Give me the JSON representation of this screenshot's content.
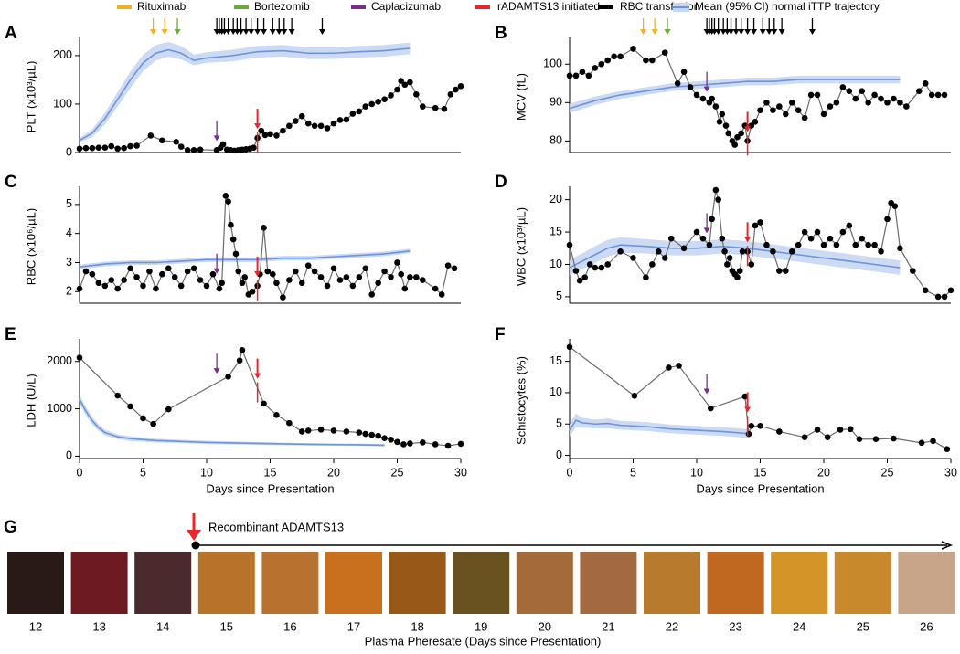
{
  "legend": [
    {
      "name": "Rituximab",
      "color": "#f2b01e",
      "days": [
        5.8,
        6.7
      ]
    },
    {
      "name": "Bortezomib",
      "color": "#6aab3a",
      "days": [
        7.7
      ]
    },
    {
      "name": "Caplacizumab",
      "color": "#7b2d8e",
      "days": [
        10.8
      ]
    },
    {
      "name": "rADAMTS13 initiated",
      "color": "#e8262a",
      "days": [
        14
      ]
    },
    {
      "name": "RBC transfusion",
      "color": "#000000",
      "days": [
        10.8,
        11,
        11.2,
        11.4,
        11.7,
        12.1,
        12.4,
        12.7,
        13.1,
        13.5,
        14,
        14.5,
        15.2,
        15.7,
        16.1,
        16.7,
        19.1
      ]
    },
    {
      "name": "Mean (95% CI) normal iTTP trajectory",
      "color": "#6e94dc",
      "band_color": "#c7d6f2"
    }
  ],
  "chart_data": [
    {
      "type": "line",
      "panel": "A",
      "ylabel": "PLT (x10³/µL)",
      "xlim": [
        0,
        30
      ],
      "ylim": [
        0,
        230
      ],
      "yticks": [
        0,
        100,
        200
      ],
      "event_strip": true,
      "patient": {
        "x": [
          0,
          0.5,
          1,
          1.5,
          2,
          2.5,
          3,
          3.5,
          4,
          4.5,
          5.6,
          6.5,
          7.6,
          8,
          8.5,
          9,
          9.5,
          10.8,
          11.1,
          11.3,
          11.6,
          11.9,
          12.2,
          12.5,
          12.8,
          13.1,
          13.4,
          13.7,
          14,
          14.3,
          14.6,
          15,
          15.5,
          16,
          16.5,
          17,
          17.5,
          18,
          18.5,
          19,
          19.5,
          20,
          20.5,
          21,
          21.5,
          22,
          22.5,
          23,
          23.5,
          24,
          24.5,
          25,
          25.3,
          25.6,
          26,
          26.5,
          27,
          28,
          28.7,
          29.2,
          29.6,
          30
        ],
        "values": [
          8,
          9,
          9,
          10,
          10,
          13,
          8,
          9,
          13,
          14,
          35,
          25,
          22,
          12,
          5,
          5,
          6,
          5,
          10,
          17,
          6,
          5,
          4,
          5,
          6,
          7,
          8,
          10,
          30,
          45,
          36,
          38,
          35,
          45,
          55,
          65,
          75,
          60,
          55,
          55,
          50,
          60,
          67,
          68,
          80,
          85,
          95,
          100,
          105,
          110,
          118,
          130,
          148,
          140,
          145,
          120,
          95,
          92,
          90,
          120,
          130,
          137
        ]
      },
      "mean": {
        "x": [
          0,
          1,
          2,
          3,
          4,
          5,
          6,
          7,
          8,
          9,
          10,
          12,
          14,
          16,
          18,
          20,
          22,
          24,
          26
        ],
        "values": [
          25,
          40,
          70,
          110,
          150,
          185,
          205,
          212,
          205,
          190,
          195,
          200,
          208,
          210,
          205,
          205,
          208,
          210,
          215
        ],
        "lower": [
          20,
          32,
          58,
          95,
          133,
          168,
          190,
          198,
          192,
          180,
          185,
          188,
          196,
          198,
          193,
          193,
          196,
          198,
          203
        ],
        "upper": [
          30,
          48,
          82,
          125,
          167,
          202,
          222,
          228,
          220,
          202,
          207,
          212,
          220,
          222,
          217,
          217,
          220,
          222,
          227
        ]
      }
    },
    {
      "type": "line",
      "panel": "B",
      "ylabel": "MCV (fL)",
      "xlim": [
        0,
        30
      ],
      "ylim": [
        77,
        106
      ],
      "yticks": [
        80,
        90,
        100
      ],
      "event_strip": true,
      "patient": {
        "x": [
          0,
          0.5,
          1,
          1.5,
          2,
          2.5,
          3,
          3.5,
          4,
          5,
          6,
          6.5,
          7.5,
          8.5,
          9,
          9.5,
          10,
          10.5,
          11,
          11.2,
          11.5,
          11.8,
          12,
          12.3,
          12.5,
          12.8,
          13,
          13.2,
          13.5,
          13.8,
          14,
          14.3,
          14.6,
          15,
          15.5,
          16,
          16.5,
          17,
          17.5,
          18,
          18.5,
          19,
          19.5,
          20,
          20.5,
          21,
          21.5,
          22,
          22.5,
          23,
          23.5,
          24,
          24.5,
          25,
          25.5,
          26,
          26.5,
          27.5,
          28,
          28.5,
          29,
          29.5
        ],
        "values": [
          97,
          97,
          98,
          97,
          99,
          100,
          101,
          102,
          102,
          104,
          101,
          101,
          103,
          95,
          98,
          94,
          92,
          91,
          90,
          91,
          89,
          85,
          87,
          84,
          82,
          80,
          79,
          81,
          82,
          84,
          80,
          84,
          85,
          88,
          90,
          88,
          89,
          87,
          90,
          88,
          86,
          92,
          92,
          87,
          89,
          90,
          94,
          93,
          91,
          93,
          90,
          92,
          91,
          90,
          91,
          90,
          89,
          93,
          95,
          92,
          92,
          92
        ]
      },
      "mean": {
        "x": [
          0,
          2,
          4,
          6,
          8,
          10,
          12,
          14,
          16,
          18,
          20,
          22,
          24,
          26
        ],
        "values": [
          88.5,
          90.5,
          92,
          93,
          94,
          94.5,
          95,
          95.5,
          95.5,
          96,
          96,
          96,
          96,
          96
        ],
        "lower": [
          87.3,
          89.4,
          91,
          92,
          93,
          93.5,
          94,
          94.5,
          94.5,
          95,
          95,
          95,
          95,
          95
        ],
        "upper": [
          89.7,
          91.6,
          93,
          94,
          95,
          95.5,
          96,
          96.5,
          96.5,
          97,
          97,
          97,
          97,
          97
        ]
      }
    },
    {
      "type": "line",
      "panel": "C",
      "ylabel": "RBC (x10⁶/µL)",
      "xlim": [
        0,
        30
      ],
      "ylim": [
        1.6,
        5.5
      ],
      "yticks": [
        2,
        3,
        4,
        5
      ],
      "patient": {
        "x": [
          0,
          0.5,
          1,
          1.5,
          2,
          2.5,
          3,
          3.5,
          4,
          4.5,
          5,
          5.5,
          6,
          6.5,
          7,
          7.5,
          8,
          8.5,
          9,
          9.5,
          10,
          10.5,
          11,
          11.2,
          11.5,
          11.7,
          11.9,
          12.1,
          12.3,
          12.5,
          12.8,
          13,
          13.3,
          13.6,
          14,
          14.2,
          14.5,
          14.8,
          15.2,
          15.5,
          16,
          16.5,
          17,
          17.5,
          18,
          18.5,
          19,
          19.5,
          20,
          20.5,
          21,
          21.5,
          22,
          22.5,
          23,
          23.5,
          24,
          24.5,
          25,
          25.3,
          25.6,
          26,
          26.5,
          27,
          28,
          28.5,
          29,
          29.5
        ],
        "values": [
          2.1,
          2.7,
          2.6,
          2.3,
          2.2,
          2.4,
          2.1,
          2.4,
          2.8,
          2.5,
          2.2,
          2.7,
          2.1,
          2.6,
          2.8,
          2.5,
          2.2,
          2.7,
          2.8,
          2.4,
          2.2,
          2.6,
          2.1,
          2.3,
          5.3,
          5.1,
          4.3,
          3.8,
          3.3,
          2.7,
          2.3,
          2.5,
          1.9,
          2.0,
          2.2,
          2.6,
          4.2,
          2.7,
          2.6,
          2.3,
          1.8,
          2.4,
          2.7,
          2.3,
          2.9,
          2.7,
          2.5,
          2.2,
          2.8,
          2.4,
          2.5,
          2.2,
          2.5,
          2.8,
          1.9,
          2.3,
          2.7,
          2.5,
          3.0,
          2.6,
          2.1,
          2.5,
          2.5,
          2.4,
          2.1,
          1.9,
          2.9,
          2.8
        ]
      },
      "mean": {
        "x": [
          0,
          2,
          4,
          6,
          8,
          10,
          12,
          14,
          16,
          18,
          20,
          22,
          24,
          26
        ],
        "values": [
          2.85,
          2.95,
          3.0,
          3.0,
          3.05,
          3.1,
          3.1,
          3.1,
          3.15,
          3.15,
          3.2,
          3.25,
          3.3,
          3.4
        ],
        "lower": [
          2.77,
          2.87,
          2.92,
          2.92,
          2.97,
          3.02,
          3.02,
          3.02,
          3.07,
          3.07,
          3.12,
          3.17,
          3.22,
          3.32
        ],
        "upper": [
          2.93,
          3.03,
          3.08,
          3.08,
          3.13,
          3.18,
          3.18,
          3.18,
          3.23,
          3.23,
          3.28,
          3.33,
          3.38,
          3.48
        ]
      }
    },
    {
      "type": "line",
      "panel": "D",
      "ylabel": "WBC (x10³/µL)",
      "xlim": [
        0,
        30
      ],
      "ylim": [
        4,
        21.5
      ],
      "yticks": [
        5,
        10,
        15,
        20
      ],
      "patient": {
        "x": [
          0,
          0.5,
          0.8,
          1.2,
          1.6,
          2,
          2.5,
          3,
          4,
          5,
          6,
          6.5,
          7,
          7.5,
          8,
          9,
          10,
          10.5,
          11,
          11.2,
          11.5,
          11.7,
          12,
          12.2,
          12.4,
          12.6,
          12.8,
          13,
          13.2,
          13.4,
          13.6,
          14,
          14.3,
          14.6,
          15,
          15.5,
          16,
          16.5,
          17,
          17.5,
          18,
          18.5,
          19,
          19.5,
          20,
          20.5,
          21,
          21.5,
          22,
          22.5,
          23,
          23.5,
          24,
          24.5,
          25,
          25.3,
          25.6,
          26,
          27,
          28,
          29,
          29.5,
          30
        ],
        "values": [
          13,
          9,
          7.5,
          8,
          10,
          9.5,
          9.5,
          10,
          12,
          11,
          8,
          10,
          12,
          11,
          14,
          12.5,
          15,
          14,
          13,
          17,
          21.5,
          20,
          14,
          12,
          10,
          11,
          9,
          8.5,
          8,
          9,
          12,
          12,
          10,
          16,
          16.5,
          13,
          12,
          9,
          9,
          12,
          13,
          15,
          14,
          15,
          13,
          14,
          13,
          15,
          16,
          13,
          14,
          13,
          13,
          12,
          17,
          19.5,
          19,
          12.5,
          9,
          6,
          5,
          5,
          6
        ]
      },
      "mean": {
        "x": [
          0,
          1,
          2,
          3,
          4,
          6,
          8,
          10,
          12,
          14,
          16,
          18,
          20,
          22,
          24,
          26
        ],
        "values": [
          9.5,
          10.5,
          11.5,
          12.5,
          13,
          12.8,
          12.5,
          12.5,
          12.8,
          12.5,
          12,
          11.5,
          11,
          10.5,
          10,
          9.5
        ],
        "lower": [
          8.3,
          9.3,
          10.2,
          11.2,
          11.8,
          11.7,
          11.4,
          11.4,
          11.7,
          11.4,
          10.9,
          10.4,
          9.9,
          9.4,
          8.9,
          8.4
        ],
        "upper": [
          10.7,
          11.7,
          12.8,
          13.8,
          14.2,
          13.9,
          13.6,
          13.6,
          13.9,
          13.6,
          13.1,
          12.6,
          12.1,
          11.6,
          11.1,
          10.6
        ]
      }
    },
    {
      "type": "line",
      "panel": "E",
      "ylabel": "LDH (U/L)",
      "xlabel": "Days since Presentation",
      "xlim": [
        0,
        30
      ],
      "xticks": [
        0,
        5,
        10,
        15,
        20,
        25,
        30
      ],
      "ylim": [
        -50,
        2400
      ],
      "yticks": [
        0,
        1000,
        2000
      ],
      "patient": {
        "x": [
          0,
          3,
          4,
          5,
          5.8,
          7,
          11.7,
          12.6,
          12.8,
          14.5,
          15.5,
          16.5,
          17.5,
          18,
          19,
          20,
          21,
          22,
          22.5,
          23,
          23.5,
          24,
          24.5,
          25,
          25.5,
          26,
          27,
          28,
          29,
          30
        ],
        "values": [
          2080,
          1280,
          1050,
          800,
          680,
          990,
          1680,
          2020,
          2240,
          1110,
          870,
          700,
          520,
          540,
          560,
          540,
          520,
          500,
          470,
          450,
          430,
          380,
          350,
          300,
          250,
          270,
          290,
          250,
          220,
          260
        ]
      },
      "mean": {
        "x": [
          0,
          0.5,
          1,
          1.5,
          2,
          3,
          4,
          6,
          8,
          10,
          14,
          18,
          22,
          24
        ],
        "values": [
          1200,
          950,
          750,
          600,
          500,
          410,
          370,
          330,
          310,
          290,
          270,
          250,
          240,
          230
        ],
        "lower": [
          1100,
          860,
          670,
          530,
          440,
          360,
          320,
          290,
          275,
          255,
          240,
          225,
          215,
          205
        ],
        "upper": [
          1300,
          1040,
          830,
          670,
          560,
          460,
          420,
          370,
          345,
          325,
          300,
          275,
          265,
          255
        ]
      }
    },
    {
      "type": "line",
      "panel": "F",
      "ylabel": "Schistocytes (%)",
      "xlabel": "Days since Presentation",
      "xlim": [
        0,
        30
      ],
      "xticks": [
        0,
        5,
        10,
        15,
        20,
        25,
        30
      ],
      "ylim": [
        -0.5,
        18
      ],
      "yticks": [
        0,
        5,
        10,
        15
      ],
      "patient": {
        "x": [
          0,
          5.1,
          7.8,
          8.6,
          11.1,
          13.8,
          14.1,
          14.3,
          15,
          16.5,
          18.5,
          19.5,
          20.3,
          21.3,
          22.1,
          22.8,
          24.1,
          25.5,
          27.7,
          28.6,
          29.7
        ],
        "values": [
          17.3,
          9.5,
          14,
          14.3,
          7.5,
          9.4,
          3.4,
          4.7,
          4.7,
          3.8,
          2.9,
          4.1,
          2.9,
          4.1,
          4.2,
          2.6,
          2.6,
          2.7,
          2,
          2.3,
          1
        ]
      },
      "mean": {
        "x": [
          0,
          0.5,
          1,
          2,
          3,
          4,
          6,
          8,
          10,
          12,
          14
        ],
        "values": [
          4,
          5.6,
          5.2,
          5,
          5.1,
          4.8,
          4.6,
          4.2,
          4,
          3.8,
          3.5
        ],
        "lower": [
          3,
          4.5,
          4.4,
          4.3,
          4.3,
          4.1,
          3.9,
          3.5,
          3.3,
          3.1,
          2.8
        ],
        "upper": [
          5,
          6.7,
          6,
          5.7,
          5.9,
          5.5,
          5.3,
          4.9,
          4.7,
          4.5,
          4.2
        ]
      }
    }
  ],
  "panel_g": {
    "label": "G",
    "annotation": "Recombinant ADAMTS13",
    "xlabel": "Plasma Pheresate (Days since Presentation)",
    "days": [
      12,
      13,
      14,
      15,
      16,
      17,
      18,
      19,
      20,
      21,
      22,
      23,
      24,
      25,
      26
    ]
  }
}
